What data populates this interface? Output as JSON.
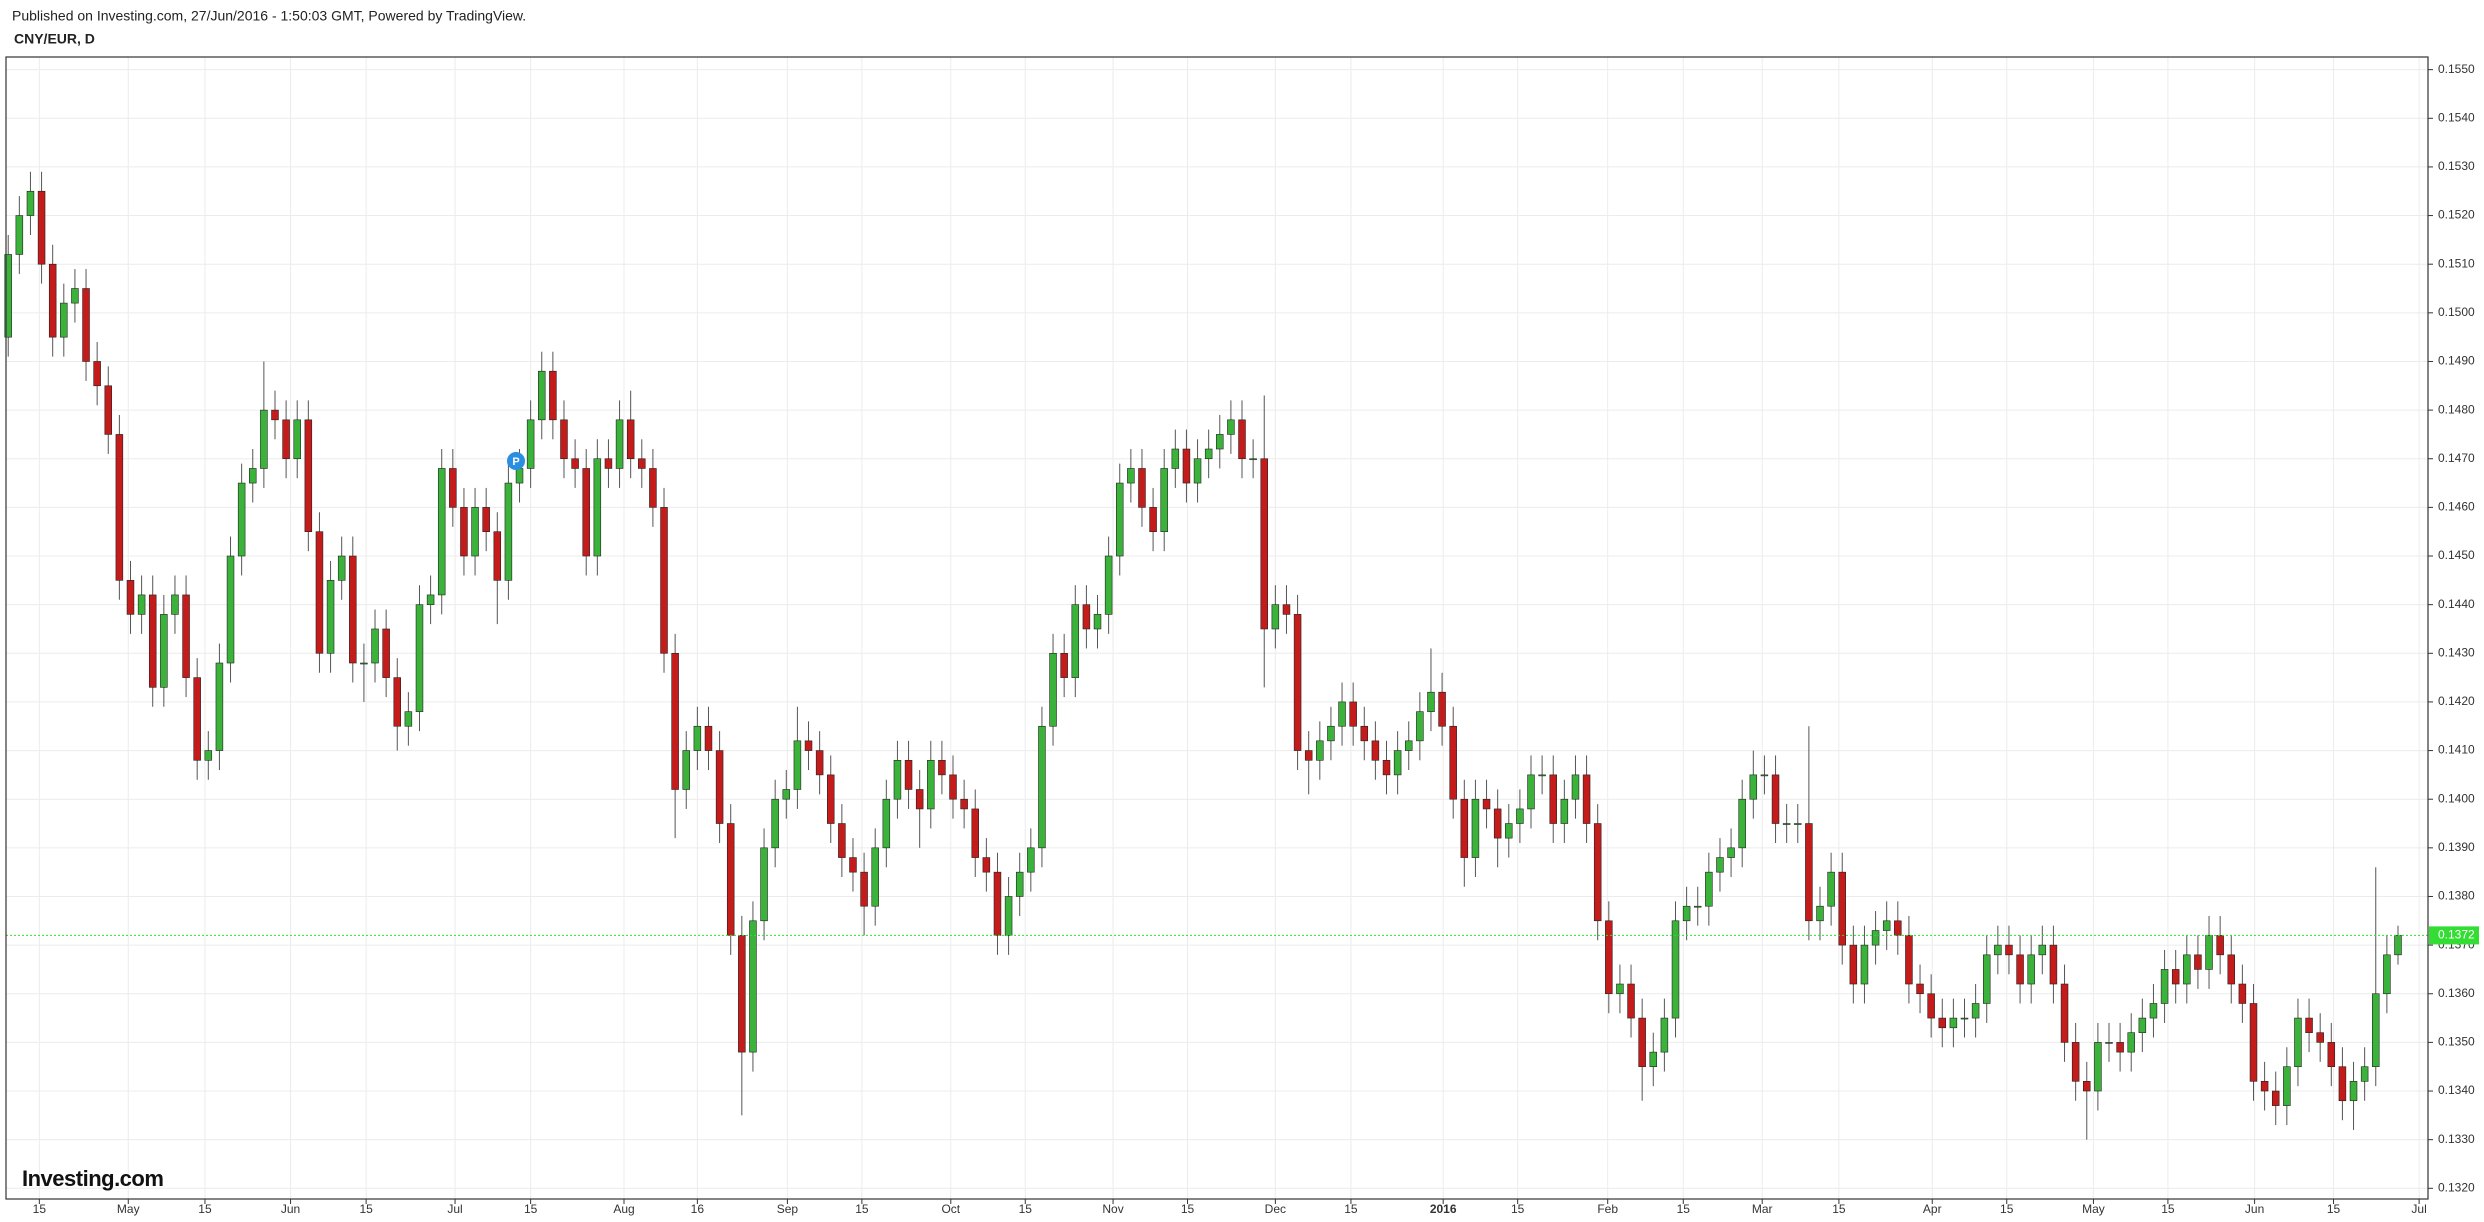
{
  "chart_data": {
    "type": "candlestick",
    "subtitle": "Published on Investing.com, 27/Jun/2016 - 1:50:03 GMT, Powered by TradingView.",
    "title": "CNY/EUR, D",
    "watermark": "Investing.com",
    "marker": "P",
    "last_price": 0.1372,
    "grid": true,
    "up_color": "#3bb33b",
    "down_color": "#c41b1b",
    "last_price_color": "#33dd33",
    "xlim": [
      -0.2,
      217.7
    ],
    "ylim": [
      0.13178,
      0.15526
    ],
    "xticks": [
      {
        "value": 2.8,
        "label": "15"
      },
      {
        "value": 10.8,
        "label": "May"
      },
      {
        "value": 17.7,
        "label": "15"
      },
      {
        "value": 25.4,
        "label": "Jun"
      },
      {
        "value": 32.2,
        "label": "15"
      },
      {
        "value": 40.2,
        "label": "Jul"
      },
      {
        "value": 47.0,
        "label": "15"
      },
      {
        "value": 55.4,
        "label": "Aug"
      },
      {
        "value": 62.0,
        "label": "16"
      },
      {
        "value": 70.1,
        "label": "Sep"
      },
      {
        "value": 76.8,
        "label": "15"
      },
      {
        "value": 84.8,
        "label": "Oct"
      },
      {
        "value": 91.5,
        "label": "15"
      },
      {
        "value": 99.4,
        "label": "Nov"
      },
      {
        "value": 106.1,
        "label": "15"
      },
      {
        "value": 114.0,
        "label": "Dec"
      },
      {
        "value": 120.8,
        "label": "15"
      },
      {
        "value": 129.1,
        "label": "2016"
      },
      {
        "value": 135.8,
        "label": "15"
      },
      {
        "value": 143.9,
        "label": "Feb"
      },
      {
        "value": 150.7,
        "label": "15"
      },
      {
        "value": 157.8,
        "label": "Mar"
      },
      {
        "value": 164.7,
        "label": "15"
      },
      {
        "value": 173.1,
        "label": "Apr"
      },
      {
        "value": 179.8,
        "label": "15"
      },
      {
        "value": 187.6,
        "label": "May"
      },
      {
        "value": 194.3,
        "label": "15"
      },
      {
        "value": 202.1,
        "label": "Jun"
      },
      {
        "value": 209.2,
        "label": "15"
      },
      {
        "value": 216.9,
        "label": "Jul"
      }
    ],
    "yticks": [
      {
        "value": 0.132,
        "label": "0.1320"
      },
      {
        "value": 0.133,
        "label": "0.1330"
      },
      {
        "value": 0.134,
        "label": "0.1340"
      },
      {
        "value": 0.135,
        "label": "0.1350"
      },
      {
        "value": 0.136,
        "label": "0.1360"
      },
      {
        "value": 0.137,
        "label": "0.1370"
      },
      {
        "value": 0.138,
        "label": "0.1380"
      },
      {
        "value": 0.139,
        "label": "0.1390"
      },
      {
        "value": 0.14,
        "label": "0.1400"
      },
      {
        "value": 0.141,
        "label": "0.1410"
      },
      {
        "value": 0.142,
        "label": "0.1420"
      },
      {
        "value": 0.143,
        "label": "0.1430"
      },
      {
        "value": 0.144,
        "label": "0.1440"
      },
      {
        "value": 0.145,
        "label": "0.1450"
      },
      {
        "value": 0.146,
        "label": "0.1460"
      },
      {
        "value": 0.147,
        "label": "0.1470"
      },
      {
        "value": 0.148,
        "label": "0.1480"
      },
      {
        "value": 0.149,
        "label": "0.1490"
      },
      {
        "value": 0.15,
        "label": "0.1500"
      },
      {
        "value": 0.151,
        "label": "0.1510"
      },
      {
        "value": 0.152,
        "label": "0.1520"
      },
      {
        "value": 0.153,
        "label": "0.1530"
      },
      {
        "value": 0.154,
        "label": "0.1540"
      },
      {
        "value": 0.155,
        "label": "0.1550"
      }
    ],
    "open": [
      0.1495,
      0.1512,
      0.152,
      0.1525,
      0.151,
      0.1495,
      0.1502,
      0.1505,
      0.149,
      0.1485,
      0.1475,
      0.1445,
      0.1438,
      0.1442,
      0.1423,
      0.1438,
      0.1442,
      0.1425,
      0.1408,
      0.141,
      0.1428,
      0.145,
      0.1465,
      0.1468,
      0.148,
      0.1478,
      0.147,
      0.1478,
      0.1455,
      0.143,
      0.1445,
      0.145,
      0.1428,
      0.1428,
      0.1435,
      0.1425,
      0.1415,
      0.1418,
      0.144,
      0.1442,
      0.1468,
      0.146,
      0.145,
      0.146,
      0.1455,
      0.1445,
      0.1465,
      0.1468,
      0.1478,
      0.1488,
      0.1478,
      0.147,
      0.1468,
      0.145,
      0.147,
      0.1468,
      0.1478,
      0.147,
      0.1468,
      0.146,
      0.143,
      0.1402,
      0.141,
      0.1415,
      0.141,
      0.1395,
      0.1372,
      0.1348,
      0.1375,
      0.139,
      0.14,
      0.1402,
      0.1412,
      0.141,
      0.1405,
      0.1395,
      0.1388,
      0.1385,
      0.1378,
      0.139,
      0.14,
      0.1408,
      0.1402,
      0.1398,
      0.1408,
      0.1405,
      0.14,
      0.1398,
      0.1388,
      0.1385,
      0.1372,
      0.138,
      0.1385,
      0.139,
      0.1415,
      0.143,
      0.1425,
      0.144,
      0.1435,
      0.1438,
      0.145,
      0.1465,
      0.1468,
      0.146,
      0.1455,
      0.1468,
      0.1472,
      0.1465,
      0.147,
      0.1472,
      0.1475,
      0.1478,
      0.147,
      0.147,
      0.1435,
      0.144,
      0.1438,
      0.141,
      0.1408,
      0.1412,
      0.1415,
      0.142,
      0.1415,
      0.1412,
      0.1408,
      0.1405,
      0.141,
      0.1412,
      0.1418,
      0.1422,
      0.1415,
      0.14,
      0.1388,
      0.14,
      0.1398,
      0.1392,
      0.1395,
      0.1398,
      0.1405,
      0.1405,
      0.1395,
      0.14,
      0.1405,
      0.1395,
      0.1375,
      0.136,
      0.1362,
      0.1355,
      0.1345,
      0.1348,
      0.1355,
      0.1375,
      0.1378,
      0.1378,
      0.1385,
      0.1388,
      0.139,
      0.14,
      0.1405,
      0.1405,
      0.1395,
      0.1395,
      0.1395,
      0.1375,
      0.1378,
      0.1385,
      0.137,
      0.1362,
      0.137,
      0.1373,
      0.1375,
      0.1372,
      0.1362,
      0.136,
      0.1355,
      0.1353,
      0.1355,
      0.1355,
      0.1358,
      0.1368,
      0.137,
      0.1368,
      0.1362,
      0.1368,
      0.137,
      0.1362,
      0.135,
      0.1342,
      0.134,
      0.135,
      0.135,
      0.1348,
      0.1352,
      0.1355,
      0.1358,
      0.1365,
      0.1362,
      0.1368,
      0.1365,
      0.1372,
      0.1368,
      0.1362,
      0.1358,
      0.1342,
      0.134,
      0.1337,
      0.1345,
      0.1355,
      0.1352,
      0.135,
      0.1345,
      0.1338,
      0.1342,
      0.1345,
      0.136,
      0.1368
    ],
    "high": [
      0.1516,
      0.1524,
      0.1529,
      0.1529,
      0.1514,
      0.1506,
      0.1509,
      0.1509,
      0.1494,
      0.1489,
      0.1479,
      0.1449,
      0.1446,
      0.1446,
      0.1442,
      0.1446,
      0.1446,
      0.1429,
      0.1414,
      0.1432,
      0.1454,
      0.1469,
      0.1472,
      0.149,
      0.1484,
      0.1482,
      0.1482,
      0.1482,
      0.1459,
      0.1449,
      0.1454,
      0.1454,
      0.1432,
      0.1439,
      0.1439,
      0.1429,
      0.1422,
      0.1444,
      0.1446,
      0.1472,
      0.1472,
      0.1464,
      0.1464,
      0.1464,
      0.1459,
      0.1469,
      0.1472,
      0.1482,
      0.1492,
      0.1492,
      0.1482,
      0.1474,
      0.1472,
      0.1474,
      0.1474,
      0.1482,
      0.1484,
      0.1474,
      0.1472,
      0.1464,
      0.1434,
      0.1414,
      0.1419,
      0.1419,
      0.1414,
      0.1399,
      0.1376,
      0.1379,
      0.1394,
      0.1404,
      0.1406,
      0.1419,
      0.1416,
      0.1414,
      0.1409,
      0.1399,
      0.1392,
      0.1389,
      0.1394,
      0.1404,
      0.1412,
      0.1412,
      0.1406,
      0.1412,
      0.1412,
      0.1409,
      0.1404,
      0.1402,
      0.1392,
      0.1389,
      0.1384,
      0.1389,
      0.1394,
      0.1419,
      0.1434,
      0.1434,
      0.1444,
      0.1444,
      0.1442,
      0.1454,
      0.1469,
      0.1472,
      0.1472,
      0.1464,
      0.1472,
      0.1476,
      0.1476,
      0.1474,
      0.1476,
      0.1479,
      0.1482,
      0.1482,
      0.1474,
      0.1483,
      0.1444,
      0.1444,
      0.1442,
      0.1414,
      0.1416,
      0.1419,
      0.1424,
      0.1424,
      0.1419,
      0.1416,
      0.1412,
      0.1414,
      0.1416,
      0.1422,
      0.1431,
      0.1426,
      0.1419,
      0.1404,
      0.1404,
      0.1404,
      0.1402,
      0.1399,
      0.1402,
      0.1409,
      0.1409,
      0.1409,
      0.1404,
      0.1409,
      0.1409,
      0.1399,
      0.1379,
      0.1366,
      0.1366,
      0.1359,
      0.1352,
      0.1359,
      0.1379,
      0.1382,
      0.1382,
      0.1389,
      0.1392,
      0.1394,
      0.1404,
      0.141,
      0.1409,
      0.1409,
      0.1399,
      0.1399,
      0.1415,
      0.1382,
      0.1389,
      0.1389,
      0.1374,
      0.1374,
      0.1377,
      0.1379,
      0.1379,
      0.1376,
      0.1366,
      0.1364,
      0.1359,
      0.1359,
      0.1359,
      0.1362,
      0.1372,
      0.1374,
      0.1374,
      0.1372,
      0.1372,
      0.1374,
      0.1374,
      0.1366,
      0.1354,
      0.1346,
      0.1354,
      0.1354,
      0.1354,
      0.1356,
      0.1359,
      0.1362,
      0.1369,
      0.1369,
      0.1372,
      0.1372,
      0.1376,
      0.1376,
      0.1372,
      0.1366,
      0.1362,
      0.1346,
      0.1344,
      0.1349,
      0.1359,
      0.1359,
      0.1356,
      0.1354,
      0.1349,
      0.1346,
      0.1349,
      0.1386,
      0.1372,
      0.1374
    ],
    "low": [
      0.1491,
      0.1508,
      0.1516,
      0.1506,
      0.1491,
      0.1491,
      0.1498,
      0.1486,
      0.1481,
      0.1471,
      0.1441,
      0.1434,
      0.1434,
      0.1419,
      0.1419,
      0.1434,
      0.1421,
      0.1404,
      0.1404,
      0.1406,
      0.1424,
      0.1446,
      0.1461,
      0.1464,
      0.1474,
      0.1466,
      0.1466,
      0.1451,
      0.1426,
      0.1426,
      0.1441,
      0.1424,
      0.142,
      0.1424,
      0.1421,
      0.141,
      0.1411,
      0.1414,
      0.1436,
      0.1438,
      0.1456,
      0.1446,
      0.1446,
      0.1451,
      0.1436,
      0.1441,
      0.1461,
      0.1464,
      0.1474,
      0.1474,
      0.1466,
      0.1464,
      0.1446,
      0.1446,
      0.1464,
      0.1464,
      0.1466,
      0.1464,
      0.1456,
      0.1426,
      0.1392,
      0.1398,
      0.1406,
      0.1406,
      0.1391,
      0.1368,
      0.1335,
      0.1344,
      0.1371,
      0.1386,
      0.1396,
      0.1398,
      0.1406,
      0.1401,
      0.1391,
      0.1384,
      0.1381,
      0.1372,
      0.1374,
      0.1386,
      0.1396,
      0.1398,
      0.139,
      0.1394,
      0.1401,
      0.1396,
      0.1394,
      0.1384,
      0.1381,
      0.1368,
      0.1368,
      0.1376,
      0.1381,
      0.1386,
      0.1411,
      0.1421,
      0.1421,
      0.1431,
      0.1431,
      0.1434,
      0.1446,
      0.1461,
      0.1456,
      0.1451,
      0.1451,
      0.1464,
      0.1461,
      0.1461,
      0.1466,
      0.1468,
      0.1471,
      0.1466,
      0.1466,
      0.1423,
      0.1431,
      0.1434,
      0.1406,
      0.1401,
      0.1404,
      0.1408,
      0.1411,
      0.1411,
      0.1408,
      0.1404,
      0.1401,
      0.1401,
      0.1406,
      0.1408,
      0.1414,
      0.1411,
      0.1396,
      0.1382,
      0.1384,
      0.1394,
      0.1386,
      0.1388,
      0.1391,
      0.1394,
      0.1401,
      0.1391,
      0.1391,
      0.1396,
      0.1391,
      0.1371,
      0.1356,
      0.1356,
      0.1351,
      0.1338,
      0.1341,
      0.1344,
      0.1351,
      0.1371,
      0.1374,
      0.1374,
      0.1381,
      0.1384,
      0.1386,
      0.1396,
      0.1401,
      0.1391,
      0.1391,
      0.1391,
      0.1371,
      0.1371,
      0.1374,
      0.1366,
      0.1358,
      0.1358,
      0.1366,
      0.1369,
      0.1368,
      0.1358,
      0.1356,
      0.1351,
      0.1349,
      0.1349,
      0.1351,
      0.1351,
      0.1354,
      0.1364,
      0.1364,
      0.1358,
      0.1358,
      0.1364,
      0.1358,
      0.1346,
      0.1338,
      0.133,
      0.1336,
      0.1346,
      0.1344,
      0.1344,
      0.1348,
      0.1351,
      0.1354,
      0.1358,
      0.1358,
      0.1361,
      0.1361,
      0.1364,
      0.1358,
      0.1354,
      0.1338,
      0.1336,
      0.1333,
      0.1333,
      0.1341,
      0.1348,
      0.1346,
      0.1341,
      0.1334,
      0.1332,
      0.1338,
      0.1341,
      0.1356,
      0.1366
    ],
    "close": [
      0.1512,
      0.152,
      0.1525,
      0.151,
      0.1495,
      0.1502,
      0.1505,
      0.149,
      0.1485,
      0.1475,
      0.1445,
      0.1438,
      0.1442,
      0.1423,
      0.1438,
      0.1442,
      0.1425,
      0.1408,
      0.141,
      0.1428,
      0.145,
      0.1465,
      0.1468,
      0.148,
      0.1478,
      0.147,
      0.1478,
      0.1455,
      0.143,
      0.1445,
      0.145,
      0.1428,
      0.1428,
      0.1435,
      0.1425,
      0.1415,
      0.1418,
      0.144,
      0.1442,
      0.1468,
      0.146,
      0.145,
      0.146,
      0.1455,
      0.1445,
      0.1465,
      0.1468,
      0.1478,
      0.1488,
      0.1478,
      0.147,
      0.1468,
      0.145,
      0.147,
      0.1468,
      0.1478,
      0.147,
      0.1468,
      0.146,
      0.143,
      0.1402,
      0.141,
      0.1415,
      0.141,
      0.1395,
      0.1372,
      0.1348,
      0.1375,
      0.139,
      0.14,
      0.1402,
      0.1412,
      0.141,
      0.1405,
      0.1395,
      0.1388,
      0.1385,
      0.1378,
      0.139,
      0.14,
      0.1408,
      0.1402,
      0.1398,
      0.1408,
      0.1405,
      0.14,
      0.1398,
      0.1388,
      0.1385,
      0.1372,
      0.138,
      0.1385,
      0.139,
      0.1415,
      0.143,
      0.1425,
      0.144,
      0.1435,
      0.1438,
      0.145,
      0.1465,
      0.1468,
      0.146,
      0.1455,
      0.1468,
      0.1472,
      0.1465,
      0.147,
      0.1472,
      0.1475,
      0.1478,
      0.147,
      0.147,
      0.1435,
      0.144,
      0.1438,
      0.141,
      0.1408,
      0.1412,
      0.1415,
      0.142,
      0.1415,
      0.1412,
      0.1408,
      0.1405,
      0.141,
      0.1412,
      0.1418,
      0.1422,
      0.1415,
      0.14,
      0.1388,
      0.14,
      0.1398,
      0.1392,
      0.1395,
      0.1398,
      0.1405,
      0.1405,
      0.1395,
      0.14,
      0.1405,
      0.1395,
      0.1375,
      0.136,
      0.1362,
      0.1355,
      0.1345,
      0.1348,
      0.1355,
      0.1375,
      0.1378,
      0.1378,
      0.1385,
      0.1388,
      0.139,
      0.14,
      0.1405,
      0.1405,
      0.1395,
      0.1395,
      0.1395,
      0.1375,
      0.1378,
      0.1385,
      0.137,
      0.1362,
      0.137,
      0.1373,
      0.1375,
      0.1372,
      0.1362,
      0.136,
      0.1355,
      0.1353,
      0.1355,
      0.1355,
      0.1358,
      0.1368,
      0.137,
      0.1368,
      0.1362,
      0.1368,
      0.137,
      0.1362,
      0.135,
      0.1342,
      0.134,
      0.135,
      0.135,
      0.1348,
      0.1352,
      0.1355,
      0.1358,
      0.1365,
      0.1362,
      0.1368,
      0.1365,
      0.1372,
      0.1368,
      0.1362,
      0.1358,
      0.1342,
      0.134,
      0.1337,
      0.1345,
      0.1355,
      0.1352,
      0.135,
      0.1345,
      0.1338,
      0.1342,
      0.1345,
      0.136,
      0.1368,
      0.1372
    ]
  }
}
